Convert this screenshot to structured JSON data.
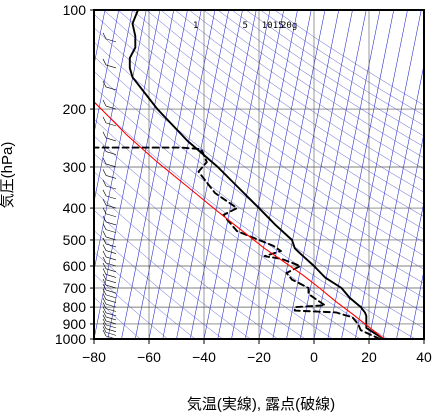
{
  "chart_data": {
    "type": "line",
    "xlabel": "気温(実線), 露点(破線)",
    "ylabel": "気圧(hPa)",
    "xlim": [
      -80,
      40
    ],
    "ylim": [
      1000,
      100
    ],
    "yscale": "log",
    "grid": true,
    "x_ticks": [
      "−80",
      "−60",
      "−40",
      "−20",
      "0",
      "20",
      "40"
    ],
    "x_tick_values": [
      -80,
      -60,
      -40,
      -20,
      0,
      20,
      40
    ],
    "y_ticks": [
      "100",
      "200",
      "300",
      "400",
      "500",
      "600",
      "700",
      "800",
      "900",
      "1000"
    ],
    "y_tick_values": [
      100,
      200,
      300,
      400,
      500,
      600,
      700,
      800,
      900,
      1000
    ],
    "mixing_ratio_labels": [
      "1",
      "5",
      "10",
      "15",
      "20g"
    ],
    "series": [
      {
        "style": "solid",
        "color": "#000000",
        "points": [
          [
            25.5,
            1000
          ],
          [
            22,
            960
          ],
          [
            19,
            925
          ],
          [
            19,
            880
          ],
          [
            19,
            850
          ],
          [
            18.5,
            830
          ],
          [
            17,
            800
          ],
          [
            13,
            750
          ],
          [
            10,
            700
          ],
          [
            4,
            650
          ],
          [
            0,
            600
          ],
          [
            -5,
            550
          ],
          [
            -7,
            530
          ],
          [
            -8,
            500
          ],
          [
            -14,
            450
          ],
          [
            -20,
            400
          ],
          [
            -27,
            350
          ],
          [
            -35,
            300
          ],
          [
            -46,
            250
          ],
          [
            -57,
            200
          ],
          [
            -66,
            160
          ],
          [
            -67,
            150
          ],
          [
            -67,
            140
          ],
          [
            -65,
            130
          ],
          [
            -65,
            120
          ],
          [
            -66,
            110
          ],
          [
            -64,
            100
          ]
        ]
      },
      {
        "style": "dashed",
        "color": "#000000",
        "points": [
          [
            24,
            1000
          ],
          [
            17,
            940
          ],
          [
            16,
            900
          ],
          [
            14,
            860
          ],
          [
            8,
            830
          ],
          [
            -7,
            820
          ],
          [
            -7,
            800
          ],
          [
            4,
            790
          ],
          [
            1,
            760
          ],
          [
            -2,
            730
          ],
          [
            -2,
            700
          ],
          [
            -8,
            660
          ],
          [
            -10,
            630
          ],
          [
            -5,
            600
          ],
          [
            -12,
            570
          ],
          [
            -18,
            560
          ],
          [
            -12,
            540
          ],
          [
            -15,
            520
          ],
          [
            -28,
            470
          ],
          [
            -33,
            420
          ],
          [
            -28,
            400
          ],
          [
            -36,
            360
          ],
          [
            -42,
            310
          ],
          [
            -39,
            290
          ],
          [
            -41,
            265
          ],
          [
            -48,
            262
          ],
          [
            -80,
            262
          ]
        ]
      },
      {
        "style": "solid",
        "color": "#ff0000",
        "points": [
          [
            25.5,
            1000
          ],
          [
            20,
            920
          ],
          [
            14,
            840
          ],
          [
            8,
            770
          ],
          [
            2,
            700
          ],
          [
            -4,
            640
          ],
          [
            -10,
            590
          ],
          [
            -18,
            530
          ],
          [
            -26,
            470
          ],
          [
            -35,
            410
          ],
          [
            -45,
            350
          ],
          [
            -57,
            290
          ],
          [
            -68,
            240
          ],
          [
            -80,
            190
          ],
          [
            -85,
            170
          ],
          [
            -90,
            150
          ],
          [
            -93,
            140
          ],
          [
            -96,
            130
          ]
        ]
      }
    ],
    "colors": {
      "temperature": "#000000",
      "dewpoint": "#000000",
      "parcel": "#ff0000",
      "isotherm": "#1f22c8",
      "adiabat": "#4a4bd0",
      "grid": "#555555",
      "wind_barb": "#000000"
    }
  }
}
